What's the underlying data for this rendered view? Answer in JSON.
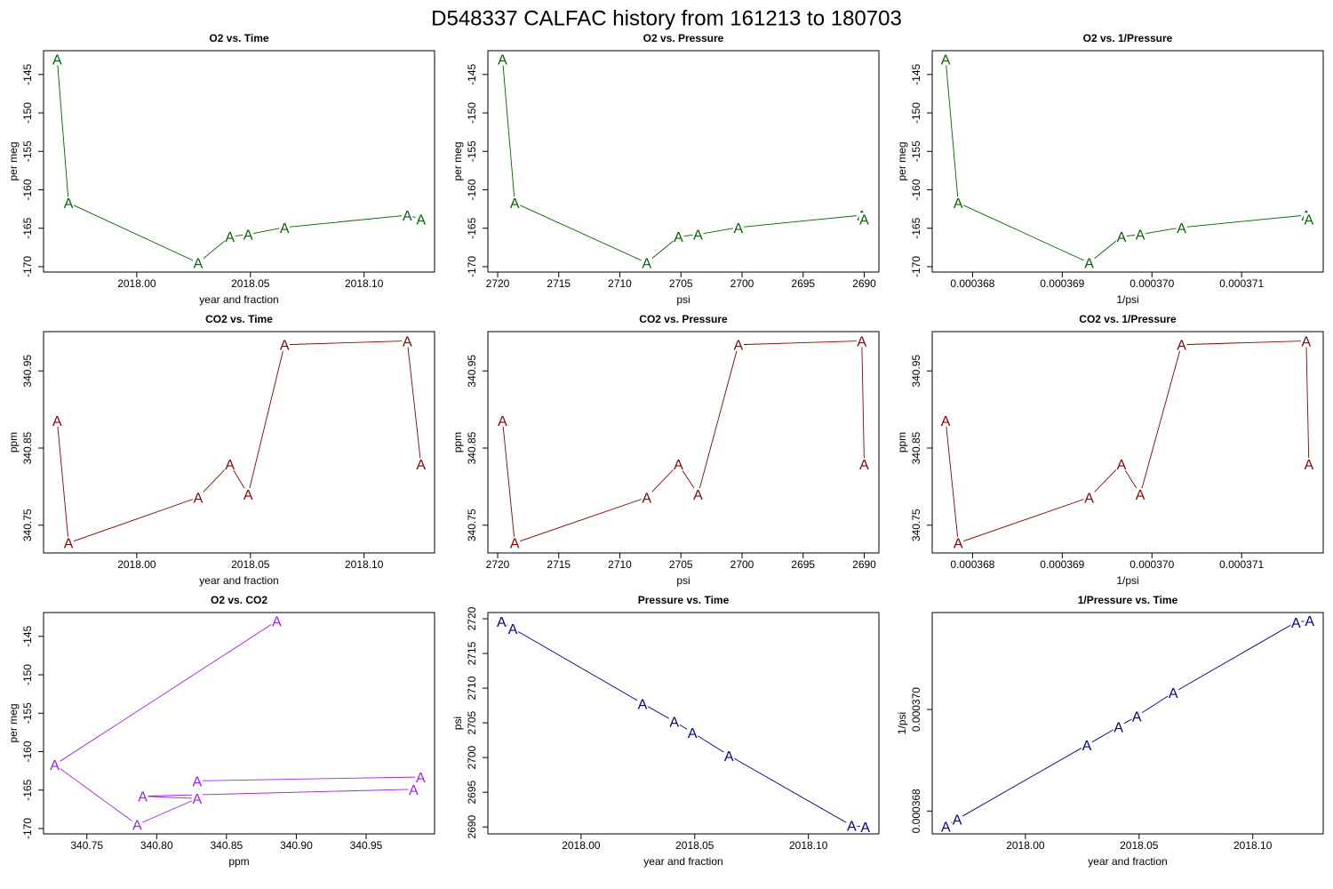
{
  "title": "D548337   CALFAC history from  161213  to  180703",
  "chart_data": [
    {
      "type": "line",
      "title": "O2 vs. Time",
      "xlabel": "year and fraction",
      "ylabel": "per meg",
      "marker": "A",
      "color": "#006400",
      "x": [
        2017.965,
        2017.97,
        2018.027,
        2018.041,
        2018.049,
        2018.065,
        2018.119,
        2018.125
      ],
      "y": [
        -143.0,
        -161.7,
        -169.5,
        -166.1,
        -165.8,
        -164.9,
        -163.3,
        -163.8
      ],
      "xlim": [
        2017.959,
        2018.131
      ],
      "ylim": [
        -170.7,
        -141.9
      ],
      "xticks": [
        {
          "value": 2018,
          "label": "2018.00"
        },
        2018.05,
        {
          "value": 2018.1,
          "label": "2018.10"
        }
      ],
      "yticks": [
        -170,
        -165,
        -160,
        -155,
        -150,
        -145
      ]
    },
    {
      "type": "line",
      "title": "O2 vs. Pressure",
      "xlabel": "psi",
      "ylabel": "per meg",
      "marker": "A",
      "color": "#006400",
      "x": [
        2719.6,
        2718.6,
        2707.8,
        2705.2,
        2703.6,
        2700.3,
        2690.2,
        2690.0
      ],
      "y": [
        -143.0,
        -161.7,
        -169.5,
        -166.1,
        -165.8,
        -164.9,
        -163.3,
        -163.8
      ],
      "xlim": [
        2720.8,
        2688.8
      ],
      "ylim": [
        -170.7,
        -141.9
      ],
      "xticks": [
        2720,
        2715,
        2710,
        2705,
        2700,
        2695,
        2690
      ],
      "yticks": [
        -170,
        -165,
        -160,
        -155,
        -150,
        -145
      ]
    },
    {
      "type": "line",
      "title": "O2 vs. 1/Pressure",
      "xlabel": "1/psi",
      "ylabel": "per meg",
      "marker": "A",
      "color": "#006400",
      "x": [
        0.0003677,
        0.00036784,
        0.0003693,
        0.00036966,
        0.00036987,
        0.00037033,
        0.00037172,
        0.00037175
      ],
      "y": [
        -143.0,
        -161.7,
        -169.5,
        -166.1,
        -165.8,
        -164.9,
        -163.3,
        -163.8
      ],
      "xlim": [
        0.00036755,
        0.00037191
      ],
      "ylim": [
        -170.7,
        -141.9
      ],
      "xticks": [
        0.000368,
        0.000369,
        {
          "value": 0.00037,
          "label": "0.000370"
        },
        0.000371
      ],
      "yticks": [
        -170,
        -165,
        -160,
        -155,
        -150,
        -145
      ]
    },
    {
      "type": "line",
      "title": "CO2 vs. Time",
      "xlabel": "year and fraction",
      "ylabel": "ppm",
      "marker": "A",
      "color": "#8b0000",
      "x": [
        2017.965,
        2017.97,
        2018.027,
        2018.041,
        2018.049,
        2018.065,
        2018.119,
        2018.125
      ],
      "y": [
        340.886,
        340.727,
        340.786,
        340.829,
        340.79,
        340.984,
        340.989,
        340.829
      ],
      "xlim": [
        2017.959,
        2018.131
      ],
      "ylim": [
        340.714,
        341.001
      ],
      "xticks": [
        {
          "value": 2018,
          "label": "2018.00"
        },
        2018.05,
        {
          "value": 2018.1,
          "label": "2018.10"
        }
      ],
      "yticks": [
        340.75,
        340.85,
        340.95
      ]
    },
    {
      "type": "line",
      "title": "CO2 vs. Pressure",
      "xlabel": "psi",
      "ylabel": "ppm",
      "marker": "A",
      "color": "#8b0000",
      "x": [
        2719.6,
        2718.6,
        2707.8,
        2705.2,
        2703.6,
        2700.3,
        2690.2,
        2690.0
      ],
      "y": [
        340.886,
        340.727,
        340.786,
        340.829,
        340.79,
        340.984,
        340.989,
        340.829
      ],
      "xlim": [
        2720.8,
        2688.8
      ],
      "ylim": [
        340.714,
        341.001
      ],
      "xticks": [
        2720,
        2715,
        2710,
        2705,
        2700,
        2695,
        2690
      ],
      "yticks": [
        340.75,
        340.85,
        340.95
      ]
    },
    {
      "type": "line",
      "title": "CO2 vs. 1/Pressure",
      "xlabel": "1/psi",
      "ylabel": "ppm",
      "marker": "A",
      "color": "#8b0000",
      "x": [
        0.0003677,
        0.00036784,
        0.0003693,
        0.00036966,
        0.00036987,
        0.00037033,
        0.00037172,
        0.00037175
      ],
      "y": [
        340.886,
        340.727,
        340.786,
        340.829,
        340.79,
        340.984,
        340.989,
        340.829
      ],
      "xlim": [
        0.00036755,
        0.00037191
      ],
      "ylim": [
        340.714,
        341.001
      ],
      "xticks": [
        0.000368,
        0.000369,
        {
          "value": 0.00037,
          "label": "0.000370"
        },
        0.000371
      ],
      "yticks": [
        340.75,
        340.85,
        340.95
      ]
    },
    {
      "type": "line",
      "title": "O2 vs. CO2",
      "xlabel": "ppm",
      "ylabel": "per meg",
      "marker": "A",
      "color": "#a020f0",
      "x": [
        340.886,
        340.727,
        340.786,
        340.829,
        340.79,
        340.984,
        340.989,
        340.829
      ],
      "y": [
        -143.0,
        -161.7,
        -169.5,
        -166.1,
        -165.8,
        -164.9,
        -163.3,
        -163.8
      ],
      "xlim": [
        340.719,
        340.999
      ],
      "ylim": [
        -170.7,
        -141.9
      ],
      "xticks": [
        340.75,
        {
          "value": 340.8,
          "label": "340.80"
        },
        340.85,
        {
          "value": 340.9,
          "label": "340.90"
        },
        340.95
      ],
      "yticks": [
        -170,
        -165,
        -160,
        -155,
        -150,
        -145
      ]
    },
    {
      "type": "line",
      "title": "Pressure vs. Time",
      "xlabel": "year and fraction",
      "ylabel": "psi",
      "marker": "A",
      "color": "#00008b",
      "x": [
        2017.965,
        2017.97,
        2018.027,
        2018.041,
        2018.049,
        2018.065,
        2018.119,
        2018.125
      ],
      "y": [
        2719.6,
        2718.6,
        2707.8,
        2705.2,
        2703.6,
        2700.3,
        2690.2,
        2690.0
      ],
      "xlim": [
        2017.959,
        2018.131
      ],
      "ylim": [
        2689.0,
        2720.9
      ],
      "xticks": [
        {
          "value": 2018,
          "label": "2018.00"
        },
        2018.05,
        {
          "value": 2018.1,
          "label": "2018.10"
        }
      ],
      "yticks": [
        2690,
        2695,
        2700,
        2705,
        2710,
        2715,
        2720
      ]
    },
    {
      "type": "line",
      "title": "1/Pressure vs. Time",
      "xlabel": "year and fraction",
      "ylabel": "1/psi",
      "marker": "A",
      "color": "#00008b",
      "x": [
        2017.965,
        2017.97,
        2018.027,
        2018.041,
        2018.049,
        2018.065,
        2018.119,
        2018.125
      ],
      "y": [
        0.0003677,
        0.00036784,
        0.0003693,
        0.00036966,
        0.00036987,
        0.00037033,
        0.00037172,
        0.00037175
      ],
      "xlim": [
        2017.959,
        2018.131
      ],
      "ylim": [
        0.00036755,
        0.00037191
      ],
      "xticks": [
        {
          "value": 2018,
          "label": "2018.00"
        },
        2018.05,
        {
          "value": 2018.1,
          "label": "2018.10"
        }
      ],
      "yticks": [
        0.000368,
        {
          "value": 0.00037,
          "label": "0.000370"
        }
      ]
    }
  ]
}
